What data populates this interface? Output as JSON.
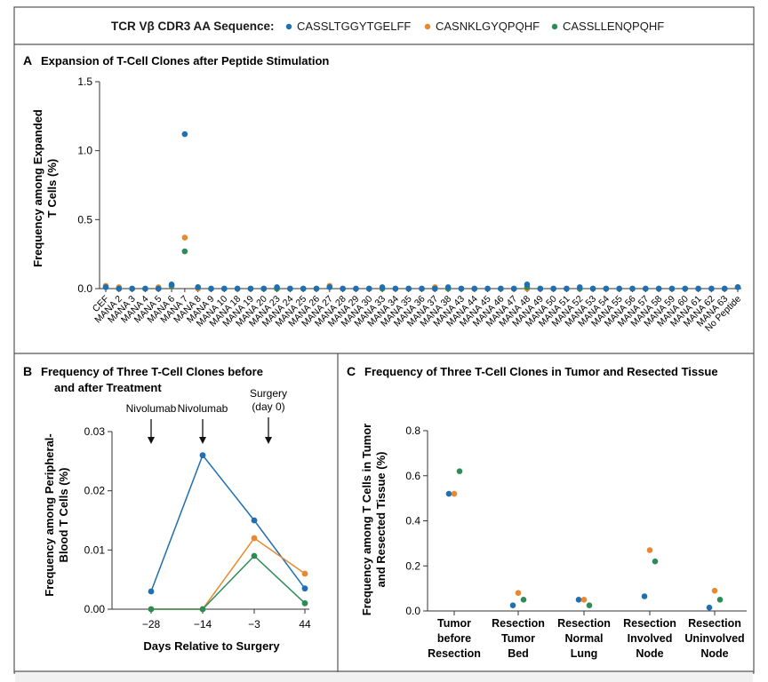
{
  "legend": {
    "title": "TCR Vβ CDR3 AA Sequence:",
    "entries": [
      {
        "label": "CASSLTGGYTGELFF",
        "color": "#1f6fb2"
      },
      {
        "label": "CASNKLGYQPQHF",
        "color": "#e8892f"
      },
      {
        "label": "CASSLLENQPQHF",
        "color": "#2e8b57"
      }
    ]
  },
  "colors": {
    "blue": "#1f6fb2",
    "orange": "#e8892f",
    "green": "#2e8b57",
    "frame": "#555555",
    "footer": "#f1f1f1"
  },
  "chart_data": [
    {
      "panel": "A",
      "type": "scatter",
      "title": "Expansion of T-Cell Clones after Peptide Stimulation",
      "ylabel": "Frequency among Expanded T Cells (%)",
      "ylabel_lines": [
        "Frequency among Expanded",
        "T Cells (%)"
      ],
      "ylim": [
        0,
        1.5
      ],
      "yticks": [
        "0.0",
        "0.5",
        "1.0",
        "1.5"
      ],
      "categories": [
        "CEF",
        "MANA 2",
        "MANA 3",
        "MANA 4",
        "MANA 5",
        "MANA 6",
        "MANA 7",
        "MANA 8",
        "MANA 9",
        "MANA 10",
        "MANA 18",
        "MANA 19",
        "MANA 20",
        "MANA 23",
        "MANA 24",
        "MANA 25",
        "MANA 26",
        "MANA 27",
        "MANA 28",
        "MANA 29",
        "MANA 30",
        "MANA 33",
        "MANA 34",
        "MANA 35",
        "MANA 36",
        "MANA 37",
        "MANA 38",
        "MANA 43",
        "MANA 44",
        "MANA 45",
        "MANA 46",
        "MANA 47",
        "MANA 48",
        "MANA 49",
        "MANA 50",
        "MANA 51",
        "MANA 52",
        "MANA 53",
        "MANA 54",
        "MANA 55",
        "MANA 56",
        "MANA 57",
        "MANA 58",
        "MANA 59",
        "MANA 60",
        "MANA 61",
        "MANA 62",
        "MANA 63",
        "No Peptide"
      ],
      "series": [
        {
          "name": "CASSLTGGYTGELFF",
          "values": [
            0.01,
            0,
            0,
            0,
            0,
            0.03,
            1.12,
            0.01,
            0,
            0,
            0,
            0,
            0,
            0.01,
            0,
            0,
            0,
            0.01,
            0,
            0,
            0,
            0.01,
            0,
            0,
            0,
            0,
            0.01,
            0,
            0,
            0,
            0,
            0,
            0.03,
            0,
            0,
            0,
            0.01,
            0,
            0,
            0,
            0,
            0,
            0,
            0,
            0,
            0,
            0,
            0,
            0.01
          ]
        },
        {
          "name": "CASNKLGYQPQHF",
          "values": [
            0.02,
            0.01,
            0,
            0,
            0.01,
            0.02,
            0.37,
            0,
            0,
            0,
            0,
            0,
            0,
            0,
            0,
            0,
            0,
            0.02,
            0,
            0,
            0,
            0,
            0,
            0,
            0,
            0.01,
            0,
            0,
            0,
            0,
            0,
            0,
            0,
            0,
            0,
            0,
            0,
            0,
            0,
            0,
            0,
            0,
            0,
            0,
            0,
            0,
            0,
            0,
            0.01
          ]
        },
        {
          "name": "CASSLLENQPQHF",
          "values": [
            0.01,
            0,
            0,
            0,
            0,
            0.02,
            0.27,
            0.01,
            0,
            0,
            0,
            0,
            0,
            0,
            0,
            0,
            0,
            0.01,
            0,
            0,
            0,
            0,
            0,
            0,
            0,
            0,
            0,
            0,
            0,
            0,
            0,
            0,
            0.01,
            0,
            0,
            0,
            0,
            0,
            0,
            0,
            0,
            0,
            0,
            0,
            0,
            0,
            0,
            0,
            0.01
          ]
        }
      ]
    },
    {
      "panel": "B",
      "type": "line",
      "title_lines": [
        "Frequency of Three T-Cell Clones before",
        "and after Treatment"
      ],
      "xlabel": "Days Relative to Surgery",
      "ylabel_lines": [
        "Frequency among Peripheral-",
        "Blood T Cells (%)"
      ],
      "x": [
        "−28",
        "−14",
        "−3",
        "44"
      ],
      "ylim": [
        0,
        0.03
      ],
      "yticks": [
        "0.00",
        "0.01",
        "0.02",
        "0.03"
      ],
      "annotations": [
        {
          "text": "Nivolumab",
          "x_index": 0
        },
        {
          "text": "Nivolumab",
          "x_index": 1
        },
        {
          "text_lines": [
            "Surgery",
            "(day 0)"
          ],
          "x_between": [
            2,
            3
          ]
        }
      ],
      "series": [
        {
          "name": "CASSLTGGYTGELFF",
          "values": [
            0.003,
            0.026,
            0.015,
            0.0035
          ]
        },
        {
          "name": "CASNKLGYQPQHF",
          "values": [
            0,
            0,
            0.012,
            0.006
          ]
        },
        {
          "name": "CASSLLENQPQHF",
          "values": [
            0,
            0,
            0.009,
            0.001
          ]
        }
      ]
    },
    {
      "panel": "C",
      "type": "scatter",
      "title": "Frequency of Three T-Cell Clones in Tumor and Resected Tissue",
      "ylabel_lines": [
        "Frequency among T Cells in Tumor",
        "and Resected Tissue (%)"
      ],
      "ylim": [
        0,
        0.8
      ],
      "yticks": [
        "0.0",
        "0.2",
        "0.4",
        "0.6",
        "0.8"
      ],
      "categories": [
        [
          "Tumor",
          "before",
          "Resection"
        ],
        [
          "Resection",
          "Tumor",
          "Bed"
        ],
        [
          "Resection",
          "Normal",
          "Lung"
        ],
        [
          "Resection",
          "Involved",
          "Node"
        ],
        [
          "Resection",
          "Uninvolved",
          "Node"
        ]
      ],
      "series": [
        {
          "name": "CASSLTGGYTGELFF",
          "values": [
            0.52,
            0.025,
            0.05,
            0.065,
            0.015
          ]
        },
        {
          "name": "CASNKLGYQPQHF",
          "values": [
            0.52,
            0.08,
            0.05,
            0.27,
            0.09
          ]
        },
        {
          "name": "CASSLLENQPQHF",
          "values": [
            0.62,
            0.05,
            0.025,
            0.22,
            0.05
          ]
        }
      ]
    }
  ]
}
